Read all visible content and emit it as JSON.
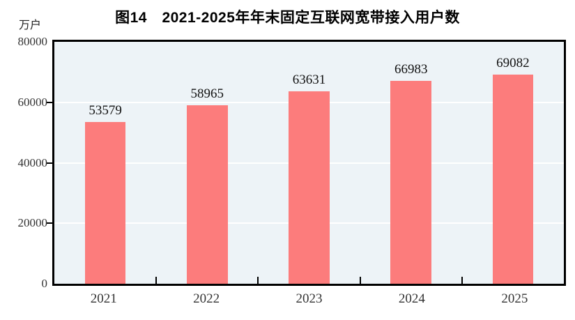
{
  "chart_data": {
    "type": "bar",
    "title": "图14　2021-2025年年末固定互联网宽带接入用户数",
    "ylabel": "万户",
    "xlabel": "",
    "categories": [
      "2021",
      "2022",
      "2023",
      "2024",
      "2025"
    ],
    "values": [
      53579,
      58965,
      63631,
      66983,
      69082
    ],
    "data_labels": [
      "53579",
      "58965",
      "63631",
      "66983",
      "69082"
    ],
    "ylim": [
      0,
      80000
    ],
    "yticks": [
      0,
      20000,
      40000,
      60000,
      80000
    ],
    "ytick_labels": [
      "0",
      "20000",
      "40000",
      "60000",
      "80000"
    ],
    "grid": true,
    "legend_position": "none",
    "colors": {
      "bar": "#fc7c7c",
      "plot_background": "#edf3f7",
      "gridline": "#ffffff",
      "axis": "#000000",
      "tick_label": "#333333",
      "title": "#000000"
    }
  }
}
